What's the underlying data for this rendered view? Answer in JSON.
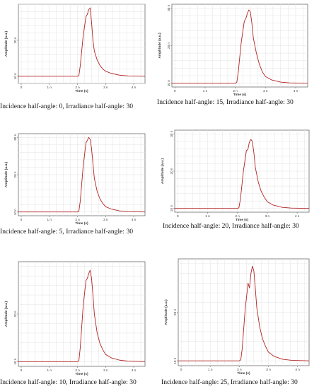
{
  "chart_data": [
    {
      "type": "line",
      "caption": "Incidence half-angle: 0, Irradiance half-angle: 30",
      "xlabel": "Time (s)",
      "ylabel": "Amplitude (a.u.)",
      "xticks": [
        "0",
        "1 n",
        "2 n",
        "3 n",
        "4 n"
      ],
      "yticks": [
        "10 n",
        "20 n"
      ],
      "xlim": [
        -0.1,
        4.4
      ],
      "ylim": [
        8,
        30
      ],
      "series": [
        {
          "color": "#b22222",
          "x": [
            -0.1,
            2.0,
            2.05,
            2.1,
            2.2,
            2.3,
            2.35,
            2.4,
            2.45,
            2.5,
            2.55,
            2.6,
            2.7,
            2.8,
            2.9,
            3.0,
            3.2,
            3.5,
            3.8,
            4.4
          ],
          "y": [
            10,
            10,
            10.2,
            13,
            21,
            26.5,
            27.2,
            28.5,
            29,
            25,
            20,
            17,
            14.5,
            13,
            12,
            11.4,
            10.8,
            10.3,
            10.1,
            10
          ]
        }
      ]
    },
    {
      "type": "line",
      "caption": "Incidence half-angle: 15, Irradiance half-angle: 30",
      "xlabel": "Time (s)",
      "ylabel": "Amplitude (a.u.)",
      "xticks": [
        "0",
        "1 n",
        "2 n",
        "3 n",
        "4 n"
      ],
      "yticks": [
        "10 n",
        "20 n",
        "30 n"
      ],
      "xlim": [
        -0.1,
        4.4
      ],
      "ylim": [
        9,
        31
      ],
      "series": [
        {
          "color": "#b22222",
          "x": [
            -0.1,
            2.0,
            2.05,
            2.1,
            2.2,
            2.3,
            2.35,
            2.4,
            2.45,
            2.5,
            2.55,
            2.6,
            2.7,
            2.8,
            2.9,
            3.0,
            3.2,
            3.5,
            3.8,
            4.4
          ],
          "y": [
            10,
            10,
            10.2,
            13,
            21,
            26.5,
            27.2,
            28.5,
            29.5,
            29,
            26,
            22,
            18,
            15,
            13,
            11.8,
            10.9,
            10.3,
            10.1,
            10
          ]
        }
      ]
    },
    {
      "type": "line",
      "caption": "Incidence half-angle: 5, Irradiance half-angle: 30",
      "xlabel": "Time (s)",
      "ylabel": "Amplitude (a.u.)",
      "xticks": [
        "0",
        "1 n",
        "2 n",
        "3 n",
        "4 n"
      ],
      "yticks": [
        "10 n",
        "20 n",
        "30 n"
      ],
      "xlim": [
        -0.1,
        4.4
      ],
      "ylim": [
        9,
        31
      ],
      "series": [
        {
          "color": "#b22222",
          "x": [
            -0.1,
            2.0,
            2.05,
            2.1,
            2.2,
            2.3,
            2.35,
            2.4,
            2.45,
            2.5,
            2.55,
            2.6,
            2.7,
            2.8,
            2.9,
            3.0,
            3.2,
            3.5,
            3.8,
            4.4
          ],
          "y": [
            10,
            10,
            10.2,
            13,
            22,
            28.5,
            29.2,
            30,
            29.5,
            27,
            23,
            19,
            15.5,
            13.5,
            12.3,
            11.4,
            10.8,
            10.3,
            10.1,
            10
          ]
        }
      ]
    },
    {
      "type": "line",
      "caption": "Incidence half-angle: 20, Irradiance half-angle: 30",
      "xlabel": "Time (s)",
      "ylabel": "Amplitude (a.u.)",
      "xticks": [
        "0",
        "1 n",
        "2 n",
        "3 n",
        "4 n"
      ],
      "yticks": [
        "10 n",
        "20 n",
        "30 n"
      ],
      "xlim": [
        -0.1,
        4.4
      ],
      "ylim": [
        9,
        31
      ],
      "series": [
        {
          "color": "#b22222",
          "x": [
            -0.1,
            2.0,
            2.05,
            2.1,
            2.2,
            2.3,
            2.35,
            2.4,
            2.45,
            2.5,
            2.55,
            2.6,
            2.7,
            2.8,
            2.9,
            3.0,
            3.2,
            3.5,
            3.8,
            4.4
          ],
          "y": [
            10,
            10,
            10.2,
            12.5,
            20,
            25.5,
            25.8,
            27.8,
            28.5,
            28,
            25,
            21,
            17,
            14.5,
            13,
            11.8,
            10.9,
            10.3,
            10.1,
            10
          ]
        }
      ]
    },
    {
      "type": "line",
      "caption": "Incidence half-angle: 10, Irradiance half-angle: 30",
      "xlabel": "Time (s)",
      "ylabel": "Amplitude (a.u.)",
      "xticks": [
        "0",
        "1 n",
        "2 n",
        "3 n",
        "4 n"
      ],
      "yticks": [
        "10 n",
        "20 n"
      ],
      "xlim": [
        -0.1,
        4.4
      ],
      "ylim": [
        9,
        31
      ],
      "series": [
        {
          "color": "#b22222",
          "x": [
            -0.1,
            2.0,
            2.05,
            2.1,
            2.2,
            2.3,
            2.35,
            2.4,
            2.45,
            2.5,
            2.55,
            2.6,
            2.7,
            2.8,
            2.9,
            3.0,
            3.2,
            3.5,
            3.8,
            4.4
          ],
          "y": [
            10,
            10,
            10.2,
            13,
            21.5,
            27,
            27.5,
            28.5,
            29.2,
            27.5,
            24,
            20,
            16,
            13.8,
            12.5,
            11.5,
            10.8,
            10.3,
            10.1,
            10
          ]
        }
      ]
    },
    {
      "type": "line",
      "caption": "Incidence half-angle: 25, Irradiance half-angle: 30",
      "xlabel": "Time (s)",
      "ylabel": "Amplitude (a.u.)",
      "xticks": [
        "0",
        "1 n",
        "2 n",
        "3 n",
        "4 n"
      ],
      "yticks": [
        "10 n",
        "20 n"
      ],
      "xlim": [
        -0.1,
        4.4
      ],
      "ylim": [
        9,
        31
      ],
      "series": [
        {
          "color": "#b22222",
          "x": [
            -0.1,
            2.0,
            2.05,
            2.1,
            2.2,
            2.3,
            2.35,
            2.4,
            2.45,
            2.5,
            2.55,
            2.6,
            2.7,
            2.8,
            2.9,
            3.0,
            3.2,
            3.5,
            3.8,
            4.4
          ],
          "y": [
            10,
            10,
            10.2,
            12.5,
            20.5,
            26,
            25,
            28,
            29.5,
            28.5,
            25,
            21,
            17,
            14.5,
            13,
            11.8,
            10.9,
            10.3,
            10.1,
            10
          ]
        }
      ]
    }
  ]
}
